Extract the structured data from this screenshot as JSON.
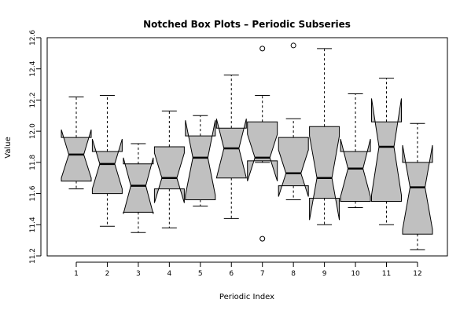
{
  "chart_data": {
    "type": "boxplot",
    "title": "Notched Box Plots – Periodic Subseries",
    "xlabel": "Periodic Index",
    "ylabel": "Value",
    "ylim": [
      11.2,
      12.6
    ],
    "y_ticks": [
      "11.2",
      "11.4",
      "11.6",
      "11.8",
      "12.0",
      "12.2",
      "12.4",
      "12.6"
    ],
    "categories": [
      "1",
      "2",
      "3",
      "4",
      "5",
      "6",
      "7",
      "8",
      "9",
      "10",
      "11",
      "12"
    ],
    "notched": true,
    "box_fill": "#c0c0c0",
    "grid": false,
    "boxes": [
      {
        "category": "1",
        "whisker_low": 11.63,
        "q1": 11.68,
        "median": 11.85,
        "q3": 11.96,
        "whisker_high": 12.22,
        "notch_low": 11.7,
        "notch_high": 12.01,
        "outliers": []
      },
      {
        "category": "2",
        "whisker_low": 11.39,
        "q1": 11.6,
        "median": 11.79,
        "q3": 11.87,
        "whisker_high": 12.23,
        "notch_low": 11.63,
        "notch_high": 11.95,
        "outliers": []
      },
      {
        "category": "3",
        "whisker_low": 11.35,
        "q1": 11.48,
        "median": 11.65,
        "q3": 11.79,
        "whisker_high": 11.92,
        "notch_low": 11.47,
        "notch_high": 11.83,
        "outliers": []
      },
      {
        "category": "4",
        "whisker_low": 11.38,
        "q1": 11.63,
        "median": 11.7,
        "q3": 11.9,
        "whisker_high": 12.13,
        "notch_low": 11.54,
        "notch_high": 11.86,
        "outliers": []
      },
      {
        "category": "5",
        "whisker_low": 11.52,
        "q1": 11.56,
        "median": 11.83,
        "q3": 11.97,
        "whisker_high": 12.1,
        "notch_low": 11.59,
        "notch_high": 12.07,
        "outliers": []
      },
      {
        "category": "6",
        "whisker_low": 11.44,
        "q1": 11.7,
        "median": 11.89,
        "q3": 12.02,
        "whisker_high": 12.36,
        "notch_low": 11.7,
        "notch_high": 12.08,
        "outliers": []
      },
      {
        "category": "7",
        "whisker_low": 11.8,
        "q1": 11.81,
        "median": 11.83,
        "q3": 12.06,
        "whisker_high": 12.23,
        "notch_low": 11.68,
        "notch_high": 11.98,
        "outliers": [
          11.31,
          12.53
        ]
      },
      {
        "category": "8",
        "whisker_low": 11.56,
        "q1": 11.65,
        "median": 11.73,
        "q3": 11.96,
        "whisker_high": 12.08,
        "notch_low": 11.58,
        "notch_high": 11.88,
        "outliers": [
          12.55
        ]
      },
      {
        "category": "9",
        "whisker_low": 11.4,
        "q1": 11.57,
        "median": 11.7,
        "q3": 12.03,
        "whisker_high": 12.53,
        "notch_low": 11.43,
        "notch_high": 11.97,
        "outliers": []
      },
      {
        "category": "10",
        "whisker_low": 11.51,
        "q1": 11.55,
        "median": 11.76,
        "q3": 11.87,
        "whisker_high": 12.24,
        "notch_low": 11.58,
        "notch_high": 11.95,
        "outliers": []
      },
      {
        "category": "11",
        "whisker_low": 11.4,
        "q1": 11.55,
        "median": 11.9,
        "q3": 12.06,
        "whisker_high": 12.34,
        "notch_low": 11.59,
        "notch_high": 12.21,
        "outliers": []
      },
      {
        "category": "12",
        "whisker_low": 11.24,
        "q1": 11.34,
        "median": 11.64,
        "q3": 11.8,
        "whisker_high": 12.05,
        "notch_low": 11.37,
        "notch_high": 11.91,
        "outliers": []
      }
    ]
  }
}
